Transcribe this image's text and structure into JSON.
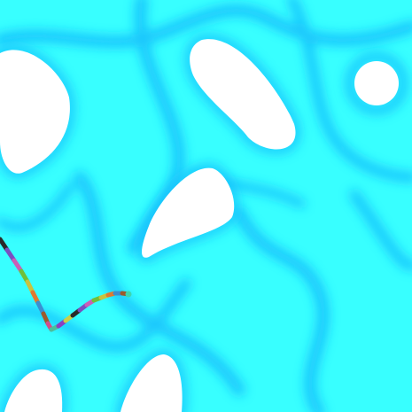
{
  "colors": {
    "field": "#38ffff",
    "contour": "#18bdfc",
    "obstacle": "#ffffff"
  },
  "trail": {
    "segment_colors": [
      "#2a2a2a",
      "#7a4fc0",
      "#c95fb7",
      "#6fbf3a",
      "#c9c23f",
      "#e07a2f",
      "#3a8fd0",
      "#9c5a2e",
      "#d04f8a",
      "#4bbf9b",
      "#8a3fc0",
      "#c9d04a"
    ],
    "head_color": "#3ed6b0"
  }
}
